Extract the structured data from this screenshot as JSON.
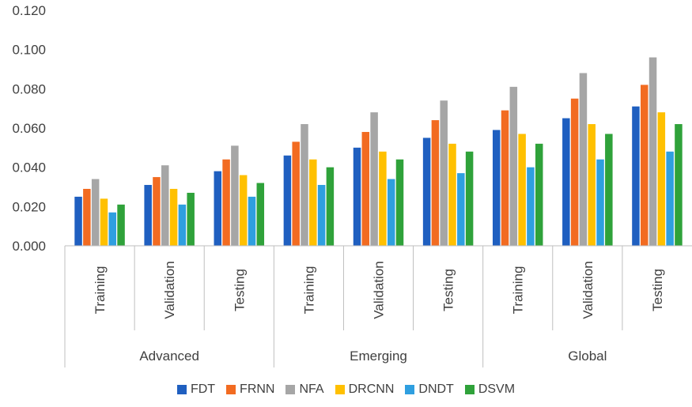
{
  "chart_data": {
    "type": "bar",
    "groups": [
      {
        "name": "Advanced",
        "categories": [
          "Training",
          "Validation",
          "Testing"
        ]
      },
      {
        "name": "Emerging",
        "categories": [
          "Training",
          "Validation",
          "Testing"
        ]
      },
      {
        "name": "Global",
        "categories": [
          "Training",
          "Validation",
          "Testing"
        ]
      }
    ],
    "series": [
      {
        "name": "FDT",
        "color": "#1f5fc0",
        "values": [
          0.025,
          0.031,
          0.038,
          0.046,
          0.05,
          0.055,
          0.059,
          0.065,
          0.071
        ]
      },
      {
        "name": "FRNN",
        "color": "#f26b21",
        "values": [
          0.029,
          0.035,
          0.044,
          0.053,
          0.058,
          0.064,
          0.069,
          0.075,
          0.082
        ]
      },
      {
        "name": "NFA",
        "color": "#a6a6a6",
        "values": [
          0.034,
          0.041,
          0.051,
          0.062,
          0.068,
          0.074,
          0.081,
          0.088,
          0.096
        ]
      },
      {
        "name": "DRCNN",
        "color": "#ffc000",
        "values": [
          0.024,
          0.029,
          0.036,
          0.044,
          0.048,
          0.052,
          0.057,
          0.062,
          0.068
        ]
      },
      {
        "name": "DNDT",
        "color": "#2f9fe0",
        "values": [
          0.017,
          0.021,
          0.025,
          0.031,
          0.034,
          0.037,
          0.04,
          0.044,
          0.048
        ]
      },
      {
        "name": "DSVM",
        "color": "#2fa23a",
        "values": [
          0.021,
          0.027,
          0.032,
          0.04,
          0.044,
          0.048,
          0.052,
          0.057,
          0.062
        ]
      }
    ],
    "ylim": [
      0,
      0.12
    ],
    "yticks": [
      "0.000",
      "0.020",
      "0.040",
      "0.060",
      "0.080",
      "0.100",
      "0.120"
    ],
    "grid": false,
    "legend_position": "bottom"
  }
}
